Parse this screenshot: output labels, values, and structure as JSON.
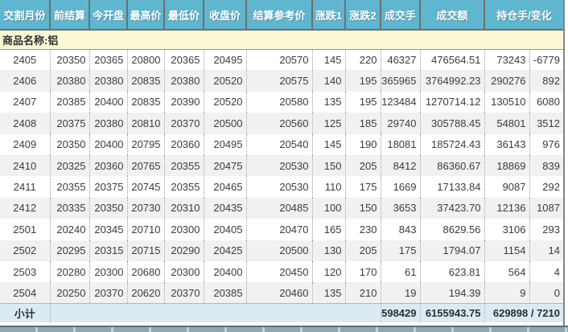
{
  "table": {
    "columns": [
      {
        "key": "delivery_month",
        "label": "交割月份"
      },
      {
        "key": "prev_settlement",
        "label": "前结算"
      },
      {
        "key": "open",
        "label": "今开盘"
      },
      {
        "key": "high",
        "label": "最高价"
      },
      {
        "key": "low",
        "label": "最低价"
      },
      {
        "key": "close",
        "label": "收盘价"
      },
      {
        "key": "settlement_ref",
        "label": "结算参考价"
      },
      {
        "key": "change1",
        "label": "涨跌1"
      },
      {
        "key": "change2",
        "label": "涨跌2"
      },
      {
        "key": "volume",
        "label": "成交手"
      },
      {
        "key": "turnover",
        "label": "成交额"
      },
      {
        "key": "open_interest_change",
        "label": "持仓手/变化"
      }
    ],
    "group_label": "商品名称:铝",
    "rows": [
      [
        "2405",
        "20350",
        "20365",
        "20800",
        "20365",
        "20495",
        "20570",
        "145",
        "220",
        "46327",
        "476564.51",
        "73243",
        "-6779"
      ],
      [
        "2406",
        "20380",
        "20380",
        "20835",
        "20380",
        "20520",
        "20575",
        "140",
        "195",
        "365965",
        "3764992.23",
        "290276",
        "892"
      ],
      [
        "2407",
        "20385",
        "20400",
        "20835",
        "20390",
        "20520",
        "20580",
        "135",
        "195",
        "123484",
        "1270714.12",
        "130510",
        "6080"
      ],
      [
        "2408",
        "20375",
        "20380",
        "20810",
        "20370",
        "20500",
        "20560",
        "125",
        "185",
        "29740",
        "305788.45",
        "54801",
        "3512"
      ],
      [
        "2409",
        "20350",
        "20400",
        "20795",
        "20360",
        "20495",
        "20540",
        "145",
        "190",
        "18081",
        "185724.43",
        "36143",
        "976"
      ],
      [
        "2410",
        "20325",
        "20360",
        "20765",
        "20355",
        "20475",
        "20530",
        "150",
        "205",
        "8412",
        "86360.67",
        "18869",
        "839"
      ],
      [
        "2411",
        "20355",
        "20375",
        "20745",
        "20355",
        "20465",
        "20530",
        "110",
        "175",
        "1669",
        "17133.84",
        "9087",
        "292"
      ],
      [
        "2412",
        "20335",
        "20350",
        "20730",
        "20310",
        "20435",
        "20485",
        "100",
        "150",
        "3653",
        "37423.70",
        "12136",
        "1087"
      ],
      [
        "2501",
        "20240",
        "20345",
        "20710",
        "20300",
        "20405",
        "20470",
        "165",
        "230",
        "843",
        "8629.56",
        "3106",
        "293"
      ],
      [
        "2502",
        "20295",
        "20315",
        "20715",
        "20290",
        "20425",
        "20500",
        "130",
        "205",
        "175",
        "1794.07",
        "1154",
        "14"
      ],
      [
        "2503",
        "20280",
        "20300",
        "20680",
        "20300",
        "20400",
        "20450",
        "120",
        "170",
        "61",
        "623.81",
        "564",
        "4"
      ],
      [
        "2504",
        "20250",
        "20370",
        "20620",
        "20370",
        "20385",
        "20460",
        "135",
        "210",
        "19",
        "194.39",
        "9",
        "0"
      ]
    ],
    "subtotal": {
      "label": "小计",
      "volume": "598429",
      "turnover": "6155943.75",
      "open_interest_change": "629898 / 7210"
    }
  },
  "colors": {
    "header_bg": "#5fb6ce",
    "header_text": "#ffffff",
    "group_row_bg": "#fbf7d5",
    "row_alt_bg": "#f1f1f1",
    "subtotal_bg": "#daebf3",
    "table_border": "#6f6f6f",
    "scrollbar_bg": "#8ea8b2"
  }
}
